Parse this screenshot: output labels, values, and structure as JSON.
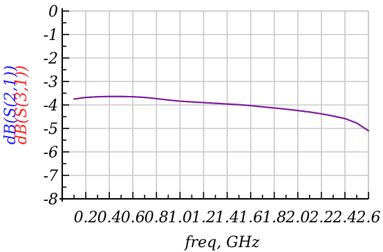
{
  "chart_data": {
    "type": "line",
    "xlabel": "freq, GHz",
    "ylabel_parts": [
      {
        "text": "dB(S(2,1))",
        "color": "#1a1aff"
      },
      {
        "text": "dB(S(3,1))",
        "color": "#ff2020"
      }
    ],
    "xlim": [
      0,
      2.6
    ],
    "ylim": [
      -8,
      0
    ],
    "x_ticks": [
      0.2,
      0.4,
      0.6,
      0.8,
      1.0,
      1.2,
      1.4,
      1.6,
      1.8,
      2.0,
      2.2,
      2.4,
      2.6
    ],
    "x_tick_labels": [
      "0.2",
      "0.4",
      "0.6",
      "0.8",
      "1.0",
      "1.2",
      "1.4",
      "1.6",
      "1.8",
      "2.0",
      "2.2",
      "2.4",
      "2.6"
    ],
    "y_ticks": [
      0,
      -1,
      -2,
      -3,
      -4,
      -5,
      -6,
      -7,
      -8
    ],
    "y_tick_labels": [
      "0",
      "-1",
      "-2",
      "-3",
      "-4",
      "-5",
      "-6",
      "-7",
      "-8"
    ],
    "x_minor_step": 0.1,
    "y_minor_step": 0.5,
    "grid": true,
    "colors": {
      "grid": "#c8c8c8",
      "axis": "#000000",
      "trace": "#7a1a9a"
    },
    "series": [
      {
        "name": "dB(S(2,1))",
        "color": "#1a1aff",
        "x": [
          0.1,
          0.2,
          0.3,
          0.4,
          0.5,
          0.6,
          0.7,
          0.8,
          0.9,
          1.0,
          1.1,
          1.2,
          1.3,
          1.4,
          1.5,
          1.6,
          1.7,
          1.8,
          1.9,
          2.0,
          2.1,
          2.2,
          2.3,
          2.4,
          2.5,
          2.6
        ],
        "values": [
          -3.75,
          -3.68,
          -3.65,
          -3.64,
          -3.64,
          -3.65,
          -3.68,
          -3.73,
          -3.79,
          -3.84,
          -3.87,
          -3.9,
          -3.93,
          -3.96,
          -3.99,
          -4.03,
          -4.08,
          -4.13,
          -4.18,
          -4.24,
          -4.3,
          -4.38,
          -4.47,
          -4.58,
          -4.77,
          -5.1
        ]
      },
      {
        "name": "dB(S(3,1))",
        "color": "#ff2020",
        "x": [
          0.1,
          0.2,
          0.3,
          0.4,
          0.5,
          0.6,
          0.7,
          0.8,
          0.9,
          1.0,
          1.1,
          1.2,
          1.3,
          1.4,
          1.5,
          1.6,
          1.7,
          1.8,
          1.9,
          2.0,
          2.1,
          2.2,
          2.3,
          2.4,
          2.5,
          2.6
        ],
        "values": [
          -3.75,
          -3.68,
          -3.65,
          -3.64,
          -3.64,
          -3.65,
          -3.68,
          -3.73,
          -3.79,
          -3.84,
          -3.87,
          -3.9,
          -3.93,
          -3.96,
          -3.99,
          -4.03,
          -4.08,
          -4.13,
          -4.18,
          -4.24,
          -4.3,
          -4.38,
          -4.47,
          -4.58,
          -4.77,
          -5.1
        ]
      }
    ]
  }
}
